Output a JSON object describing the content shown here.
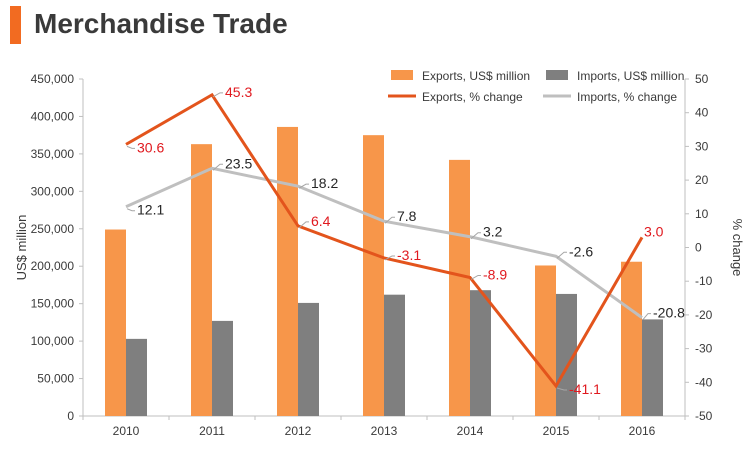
{
  "page": {
    "title": "Merchandise Trade",
    "accent_color": "#f26b21"
  },
  "chart_data": {
    "type": "bar",
    "categories": [
      "2010",
      "2011",
      "2012",
      "2013",
      "2014",
      "2015",
      "2016"
    ],
    "series": [
      {
        "name": "Exports, US$ million",
        "kind": "bar",
        "axis": "left",
        "color": "#f7964a",
        "values": [
          249000,
          363000,
          386000,
          375000,
          342000,
          201000,
          206000
        ]
      },
      {
        "name": "Imports, US$ million",
        "kind": "bar",
        "axis": "left",
        "color": "#7f7f7f",
        "values": [
          103000,
          127000,
          151000,
          162000,
          168000,
          163000,
          129000
        ]
      },
      {
        "name": "Exports, % change",
        "kind": "line",
        "axis": "right",
        "color": "#e3541c",
        "label_color": "#e0191f",
        "line_width": 3,
        "values": [
          30.6,
          45.3,
          6.4,
          -3.1,
          -8.9,
          -41.1,
          3.0
        ],
        "labels": [
          "30.6",
          "45.3",
          "6.4",
          "-3.1",
          "-8.9",
          "-41.1",
          "3.0"
        ]
      },
      {
        "name": "Imports, % change",
        "kind": "line",
        "axis": "right",
        "color": "#bfbfbf",
        "label_color": "#262626",
        "line_width": 3,
        "values": [
          12.1,
          23.5,
          18.2,
          7.8,
          3.2,
          -2.6,
          -20.8
        ],
        "labels": [
          "12.1",
          "23.5",
          "18.2",
          "7.8",
          "3.2",
          "-2.6",
          "-20.8"
        ]
      }
    ],
    "ylabel": "US$ million",
    "y2label": "% change",
    "ylim": [
      0,
      450000
    ],
    "y2lim": [
      -50,
      50
    ],
    "yticks": [
      "0",
      "50,000",
      "100,000",
      "150,000",
      "200,000",
      "250,000",
      "300,000",
      "350,000",
      "400,000",
      "450,000"
    ],
    "y2ticks": [
      "-50",
      "-40",
      "-30",
      "-20",
      "-10",
      "0",
      "10",
      "20",
      "30",
      "40",
      "50"
    ],
    "legend": "top-right",
    "grid": false
  }
}
